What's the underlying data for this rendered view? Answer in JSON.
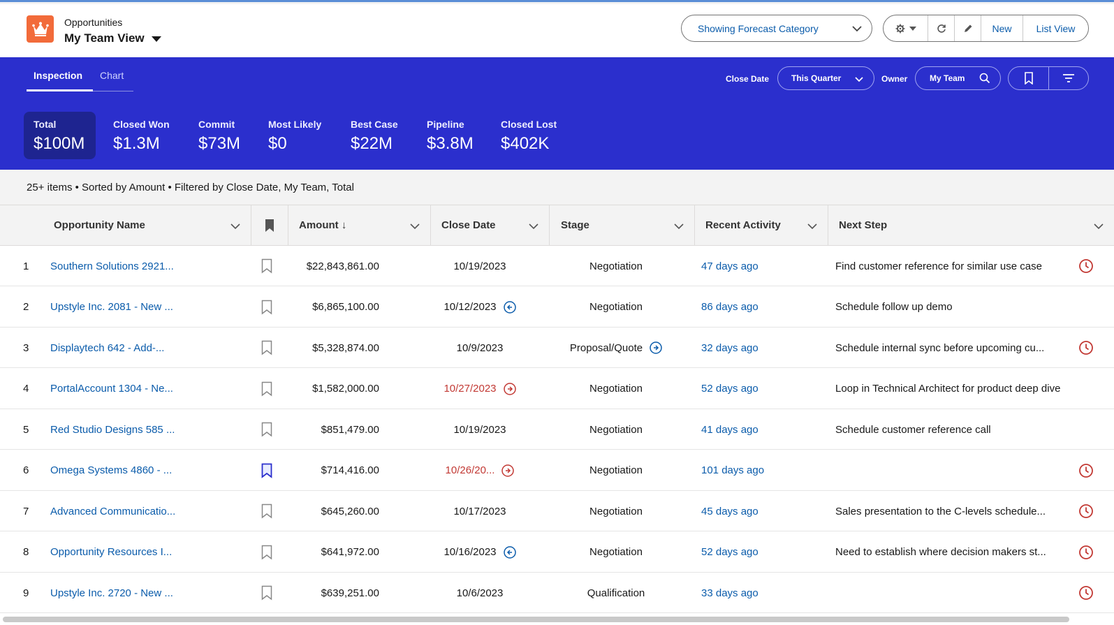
{
  "header": {
    "object_label": "Opportunities",
    "view_title": "My Team View",
    "forecast_button": "Showing Forecast Category",
    "new_button": "New",
    "list_view_button": "List View"
  },
  "tabs": [
    "Inspection",
    "Chart"
  ],
  "filters": {
    "close_date_label": "Close Date",
    "close_date_value": "This Quarter",
    "owner_label": "Owner",
    "owner_value": "My Team"
  },
  "metrics": [
    {
      "label": "Total",
      "value": "$100M"
    },
    {
      "label": "Closed Won",
      "value": "$1.3M"
    },
    {
      "label": "Commit",
      "value": "$73M"
    },
    {
      "label": "Most Likely",
      "value": "$0"
    },
    {
      "label": "Best Case",
      "value": "$22M"
    },
    {
      "label": "Pipeline",
      "value": "$3.8M"
    },
    {
      "label": "Closed Lost",
      "value": "$402K"
    }
  ],
  "info_bar": "25+ items • Sorted by Amount • Filtered by Close Date, My Team, Total",
  "columns": [
    "Opportunity Name",
    "Amount ↓",
    "Close Date",
    "Stage",
    "Recent Activity",
    "Next Step"
  ],
  "rows": [
    {
      "num": "1",
      "name": "Southern Solutions 2921...",
      "bookmarked": false,
      "amount": "$22,843,861.00",
      "close_date": "10/19/2023",
      "date_red": false,
      "date_icon": "",
      "stage": "Negotiation",
      "stage_icon": false,
      "activity": "47 days ago",
      "next_step": "Find customer reference for similar use case",
      "clock": true
    },
    {
      "num": "2",
      "name": "Upstyle Inc. 2081 - New ...",
      "bookmarked": false,
      "amount": "$6,865,100.00",
      "close_date": "10/12/2023",
      "date_red": false,
      "date_icon": "left",
      "stage": "Negotiation",
      "stage_icon": false,
      "activity": "86 days ago",
      "next_step": "Schedule follow up demo",
      "clock": false
    },
    {
      "num": "3",
      "name": "Displaytech 642 - Add-...",
      "bookmarked": false,
      "amount": "$5,328,874.00",
      "close_date": "10/9/2023",
      "date_red": false,
      "date_icon": "",
      "stage": "Proposal/Quote",
      "stage_icon": true,
      "activity": "32 days ago",
      "next_step": "Schedule internal sync before upcoming cu...",
      "clock": true
    },
    {
      "num": "4",
      "name": "PortalAccount 1304 - Ne...",
      "bookmarked": false,
      "amount": "$1,582,000.00",
      "close_date": "10/27/2023",
      "date_red": true,
      "date_icon": "right",
      "stage": "Negotiation",
      "stage_icon": false,
      "activity": "52 days ago",
      "next_step": "Loop in Technical Architect for product deep dive",
      "clock": false
    },
    {
      "num": "5",
      "name": "Red Studio Designs 585 ...",
      "bookmarked": false,
      "amount": "$851,479.00",
      "close_date": "10/19/2023",
      "date_red": false,
      "date_icon": "",
      "stage": "Negotiation",
      "stage_icon": false,
      "activity": "41 days ago",
      "next_step": "Schedule customer reference call",
      "clock": false
    },
    {
      "num": "6",
      "name": "Omega Systems 4860 - ...",
      "bookmarked": true,
      "amount": "$714,416.00",
      "close_date": "10/26/20...",
      "date_red": true,
      "date_icon": "right",
      "stage": "Negotiation",
      "stage_icon": false,
      "activity": "101 days ago",
      "next_step": "",
      "clock": true
    },
    {
      "num": "7",
      "name": "Advanced Communicatio...",
      "bookmarked": false,
      "amount": "$645,260.00",
      "close_date": "10/17/2023",
      "date_red": false,
      "date_icon": "",
      "stage": "Negotiation",
      "stage_icon": false,
      "activity": "45 days ago",
      "next_step": "Sales presentation to the C-levels schedule...",
      "clock": true
    },
    {
      "num": "8",
      "name": "Opportunity Resources I...",
      "bookmarked": false,
      "amount": "$641,972.00",
      "close_date": "10/16/2023",
      "date_red": false,
      "date_icon": "left",
      "stage": "Negotiation",
      "stage_icon": false,
      "activity": "52 days ago",
      "next_step": "Need to establish where decision makers st...",
      "clock": true
    },
    {
      "num": "9",
      "name": "Upstyle Inc. 2720 - New ...",
      "bookmarked": false,
      "amount": "$639,251.00",
      "close_date": "10/6/2023",
      "date_red": false,
      "date_icon": "",
      "stage": "Qualification",
      "stage_icon": false,
      "activity": "33 days ago",
      "next_step": "",
      "clock": true
    }
  ],
  "colors": {
    "band": "#2b2fcd",
    "link": "#0b5cab",
    "red": "#c23934",
    "logo": "#f26b3a"
  }
}
